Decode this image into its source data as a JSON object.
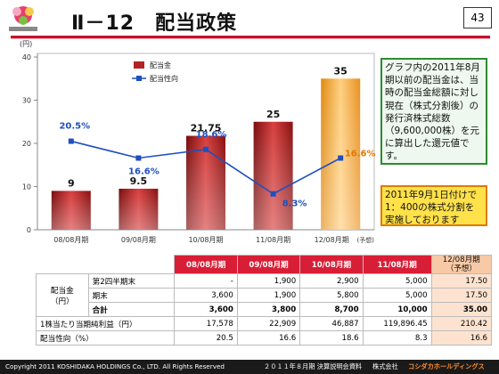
{
  "header": {
    "title": "Ⅱ－12　配当政策",
    "page_number": "43",
    "logo_icon": "koshidaka-logo-icon",
    "accent_color": "#c8102e"
  },
  "chart_data": {
    "type": "bar",
    "categories": [
      "08/08月期",
      "09/08月期",
      "10/08月期",
      "11/08月期",
      "12/08月期"
    ],
    "category_suffix": "(予想)",
    "yunit": "(円)",
    "ylim": [
      0,
      40
    ],
    "yticks": [
      0,
      10,
      20,
      30,
      40
    ],
    "grid": false,
    "legend": {
      "position": "top-center",
      "bar_label": "配当金",
      "line_label": "配当性向"
    },
    "series": [
      {
        "name": "配当金",
        "type": "bar",
        "values": [
          9,
          9.5,
          21.75,
          25,
          35
        ],
        "labels": [
          "9",
          "9.5",
          "21.75",
          "25",
          "35"
        ],
        "color": "#b22222",
        "forecast_color": "#f0a030"
      },
      {
        "name": "配当性向",
        "type": "line",
        "values": [
          20.5,
          16.6,
          18.6,
          8.3,
          16.6
        ],
        "labels": [
          "20.5%",
          "16.6%",
          "18.6%",
          "8.3%",
          "16.6%"
        ],
        "color": "#1f4fbf"
      }
    ]
  },
  "notes": {
    "main": "グラフ内の2011年8月期以前の配当金は、当時の配当金総額に対し現在（株式分割後）の発行済株式総数（9,600,000株）を元に算出した還元値です。",
    "split": "2011年9月1日付けで1：400の株式分割を実施しております"
  },
  "table": {
    "headers": [
      "08/08月期",
      "09/08月期",
      "10/08月期",
      "11/08月期",
      "12/08月期"
    ],
    "forecast_label": "（予想）",
    "group_label": "配当金",
    "group_unit": "（円）",
    "rows": [
      {
        "label": "第2四半期末",
        "values": [
          "-",
          "1,900",
          "2,900",
          "5,000",
          "17.50"
        ]
      },
      {
        "label": "期末",
        "values": [
          "3,600",
          "1,900",
          "5,800",
          "5,000",
          "17.50"
        ]
      },
      {
        "label": "合計",
        "values": [
          "3,600",
          "3,800",
          "8,700",
          "10,000",
          "35.00"
        ]
      },
      {
        "label": "1株当たり当期純利益（円）",
        "values": [
          "17,578",
          "22,909",
          "46,887",
          "119,896.45",
          "210.42"
        ]
      },
      {
        "label": "配当性向（%）",
        "values": [
          "20.5",
          "16.6",
          "18.6",
          "8.3",
          "16.6"
        ]
      }
    ]
  },
  "footer": {
    "copyright": "Copyright 2011 KOSHIDAKA HOLDINGS Co., LTD. All Rights Reserved",
    "meeting": "２０１１年８月期 決算説明会資料",
    "company": "株式会社",
    "brand": "コシダカホールディングス"
  }
}
